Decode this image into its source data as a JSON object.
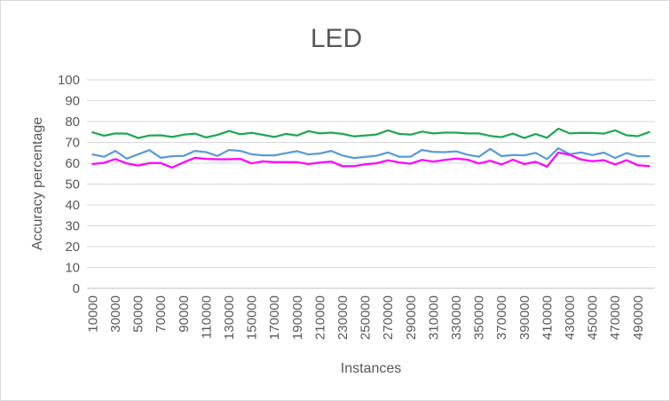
{
  "chart_data": {
    "type": "line",
    "title": "LED",
    "xlabel": "Instances",
    "ylabel": "Accuracy percentage",
    "ylim": [
      0,
      100
    ],
    "yticks": [
      0,
      10,
      20,
      30,
      40,
      50,
      60,
      70,
      80,
      90,
      100
    ],
    "grid": "horizontal",
    "legend": "none",
    "x": [
      10000,
      20000,
      30000,
      40000,
      50000,
      60000,
      70000,
      80000,
      90000,
      100000,
      110000,
      120000,
      130000,
      140000,
      150000,
      160000,
      170000,
      180000,
      190000,
      200000,
      210000,
      220000,
      230000,
      240000,
      250000,
      260000,
      270000,
      280000,
      290000,
      300000,
      310000,
      320000,
      330000,
      340000,
      350000,
      360000,
      370000,
      380000,
      390000,
      400000,
      410000,
      420000,
      430000,
      440000,
      450000,
      460000,
      470000,
      480000,
      490000,
      500000
    ],
    "xtick_labels": [
      "10000",
      "30000",
      "50000",
      "70000",
      "90000",
      "110000",
      "130000",
      "150000",
      "170000",
      "190000",
      "210000",
      "230000",
      "250000",
      "270000",
      "290000",
      "310000",
      "330000",
      "350000",
      "370000",
      "390000",
      "410000",
      "430000",
      "450000",
      "470000",
      "490000"
    ],
    "series": [
      {
        "color": "#1fa84f",
        "values": [
          74.8,
          73.2,
          74.3,
          74.2,
          72.1,
          73.3,
          73.4,
          72.6,
          73.7,
          74.2,
          72.4,
          73.6,
          75.5,
          73.9,
          74.6,
          73.6,
          72.6,
          74.1,
          73.3,
          75.4,
          74.3,
          74.7,
          74.1,
          72.9,
          73.3,
          73.8,
          75.8,
          74.1,
          73.7,
          75.2,
          74.3,
          74.7,
          74.7,
          74.3,
          74.3,
          73.1,
          72.5,
          74.2,
          72.1,
          74.0,
          72.2,
          76.6,
          74.3,
          74.6,
          74.5,
          74.2,
          75.8,
          73.4,
          73.0,
          75.0
        ]
      },
      {
        "color": "#5b9bd5",
        "values": [
          64.2,
          63.1,
          65.9,
          62.2,
          64.3,
          66.3,
          62.6,
          63.4,
          63.5,
          65.9,
          65.3,
          63.5,
          66.4,
          65.9,
          64.3,
          63.8,
          63.8,
          64.8,
          65.8,
          64.2,
          64.7,
          65.9,
          63.7,
          62.5,
          63.0,
          63.6,
          65.2,
          63.1,
          63.2,
          66.4,
          65.4,
          65.3,
          65.7,
          64.1,
          63.1,
          66.9,
          63.4,
          63.9,
          63.8,
          65.0,
          62.0,
          67.2,
          64.3,
          65.2,
          63.9,
          65.1,
          62.5,
          64.9,
          63.3,
          63.4
        ]
      },
      {
        "color": "#ff00ff",
        "values": [
          59.6,
          60.2,
          62.0,
          59.9,
          58.9,
          60.1,
          60.1,
          57.9,
          60.4,
          62.6,
          62.1,
          61.9,
          61.9,
          62.1,
          59.9,
          60.9,
          60.5,
          60.5,
          60.5,
          59.6,
          60.3,
          60.8,
          58.6,
          58.6,
          59.5,
          60.0,
          61.4,
          60.4,
          59.8,
          61.6,
          60.8,
          61.6,
          62.2,
          61.7,
          59.9,
          61.2,
          59.4,
          61.7,
          59.6,
          60.7,
          58.4,
          65.1,
          64.1,
          61.8,
          61.0,
          61.5,
          59.4,
          61.5,
          59.0,
          58.6
        ]
      }
    ]
  }
}
